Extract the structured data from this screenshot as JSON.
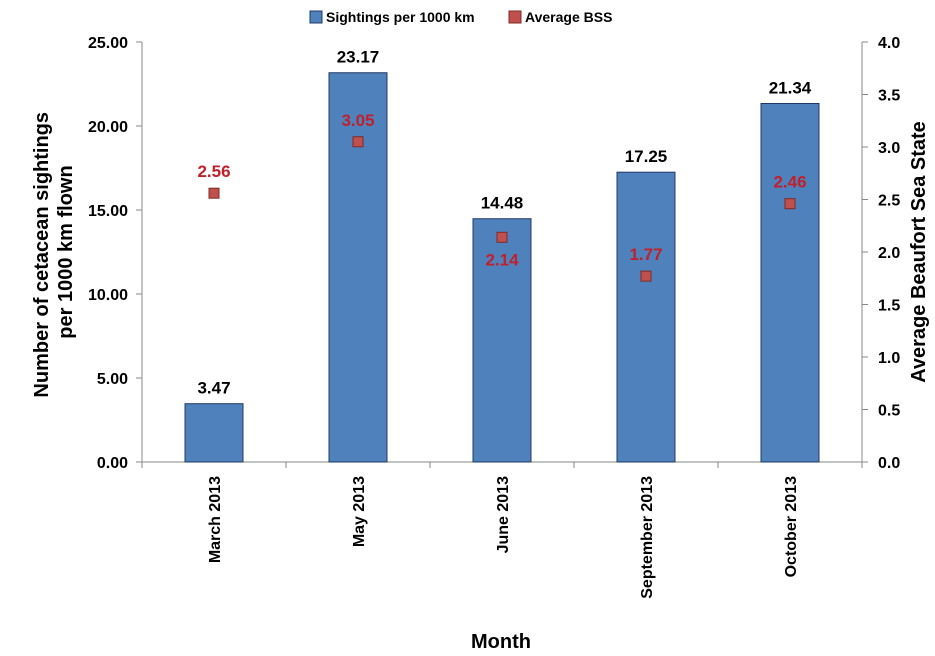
{
  "chart_data": {
    "type": "bar",
    "categories": [
      "March 2013",
      "May 2013",
      "June 2013",
      "September 2013",
      "October 2013"
    ],
    "series": [
      {
        "name": "Sightings per 1000 km",
        "type": "bar",
        "axis": "left",
        "values": [
          3.47,
          23.17,
          14.48,
          17.25,
          21.34
        ],
        "labels": [
          "3.47",
          "23.17",
          "14.48",
          "17.25",
          "21.34"
        ]
      },
      {
        "name": "Average BSS",
        "type": "scatter",
        "axis": "right",
        "values": [
          2.56,
          3.05,
          2.14,
          1.77,
          2.46
        ],
        "labels": [
          "2.56",
          "3.05",
          "2.14",
          "1.77",
          "2.46"
        ]
      }
    ],
    "xlabel": "Month",
    "ylabel": "Number of cetacean sightings per 1000 km flown",
    "ylabel_lines": [
      "Number of cetacean sightings",
      "per 1000 km flown"
    ],
    "y2label": "Average Beaufort Sea State",
    "ylim": [
      0,
      25
    ],
    "y2lim": [
      0,
      4
    ],
    "yticks": [
      "0.00",
      "5.00",
      "10.00",
      "15.00",
      "20.00",
      "25.00"
    ],
    "y2ticks": [
      "0.0",
      "0.5",
      "1.0",
      "1.5",
      "2.0",
      "2.5",
      "3.0",
      "3.5",
      "4.0"
    ],
    "grid": false,
    "legend_position": "top-center",
    "colors": {
      "bar_fill": "#4f81bd",
      "bar_stroke": "#1f3864",
      "marker_fill": "#c0504d",
      "marker_stroke": "#7f2a27",
      "bss_label": "#c0202a"
    }
  }
}
